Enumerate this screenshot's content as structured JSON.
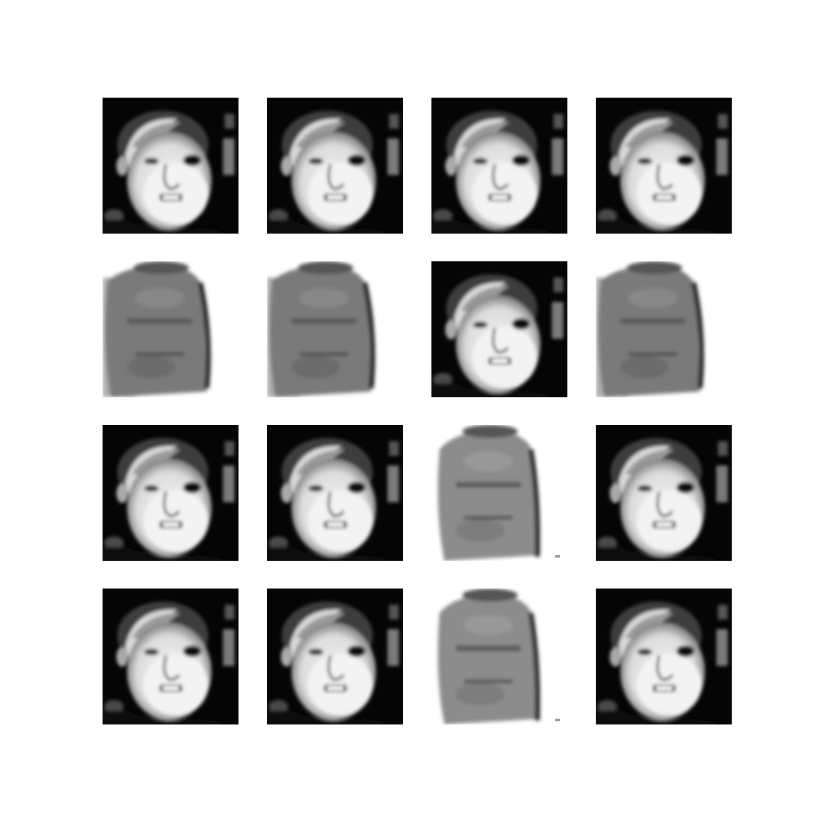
{
  "figure": {
    "background_color": "#ffffff",
    "rows": 4,
    "cols": 4,
    "samples": [
      [
        "face-dark",
        "face-dark",
        "face-dark",
        "face-dark"
      ],
      [
        "face-washed",
        "face-washed",
        "face-dark",
        "face-washed"
      ],
      [
        "face-dark",
        "face-dark",
        "face-faded",
        "face-dark"
      ],
      [
        "face-dark",
        "face-dark",
        "face-faded",
        "face-dark"
      ]
    ]
  }
}
